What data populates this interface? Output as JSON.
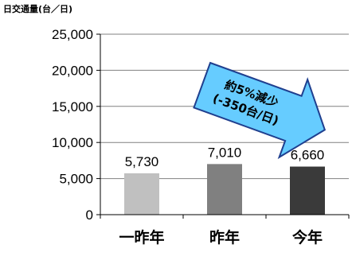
{
  "chart_data": {
    "type": "bar",
    "ylabel": "日交通量(台／日)",
    "categories": [
      "一昨年",
      "昨年",
      "今年"
    ],
    "values": [
      5730,
      7010,
      6660
    ],
    "value_labels": [
      "5,730",
      "7,010",
      "6,660"
    ],
    "ylim": [
      0,
      25000
    ],
    "yticks": [
      0,
      5000,
      10000,
      15000,
      20000,
      25000
    ],
    "ytick_labels": [
      "0",
      "5,000",
      "10,000",
      "15,000",
      "20,000",
      "25,000"
    ],
    "grid": true,
    "bar_colors": [
      "#c0c0c0",
      "#808080",
      "#3a3a3a"
    ],
    "annotation": {
      "line1": "約5%減少",
      "line2": "(-350台/日)",
      "color": "#66ccff"
    }
  }
}
